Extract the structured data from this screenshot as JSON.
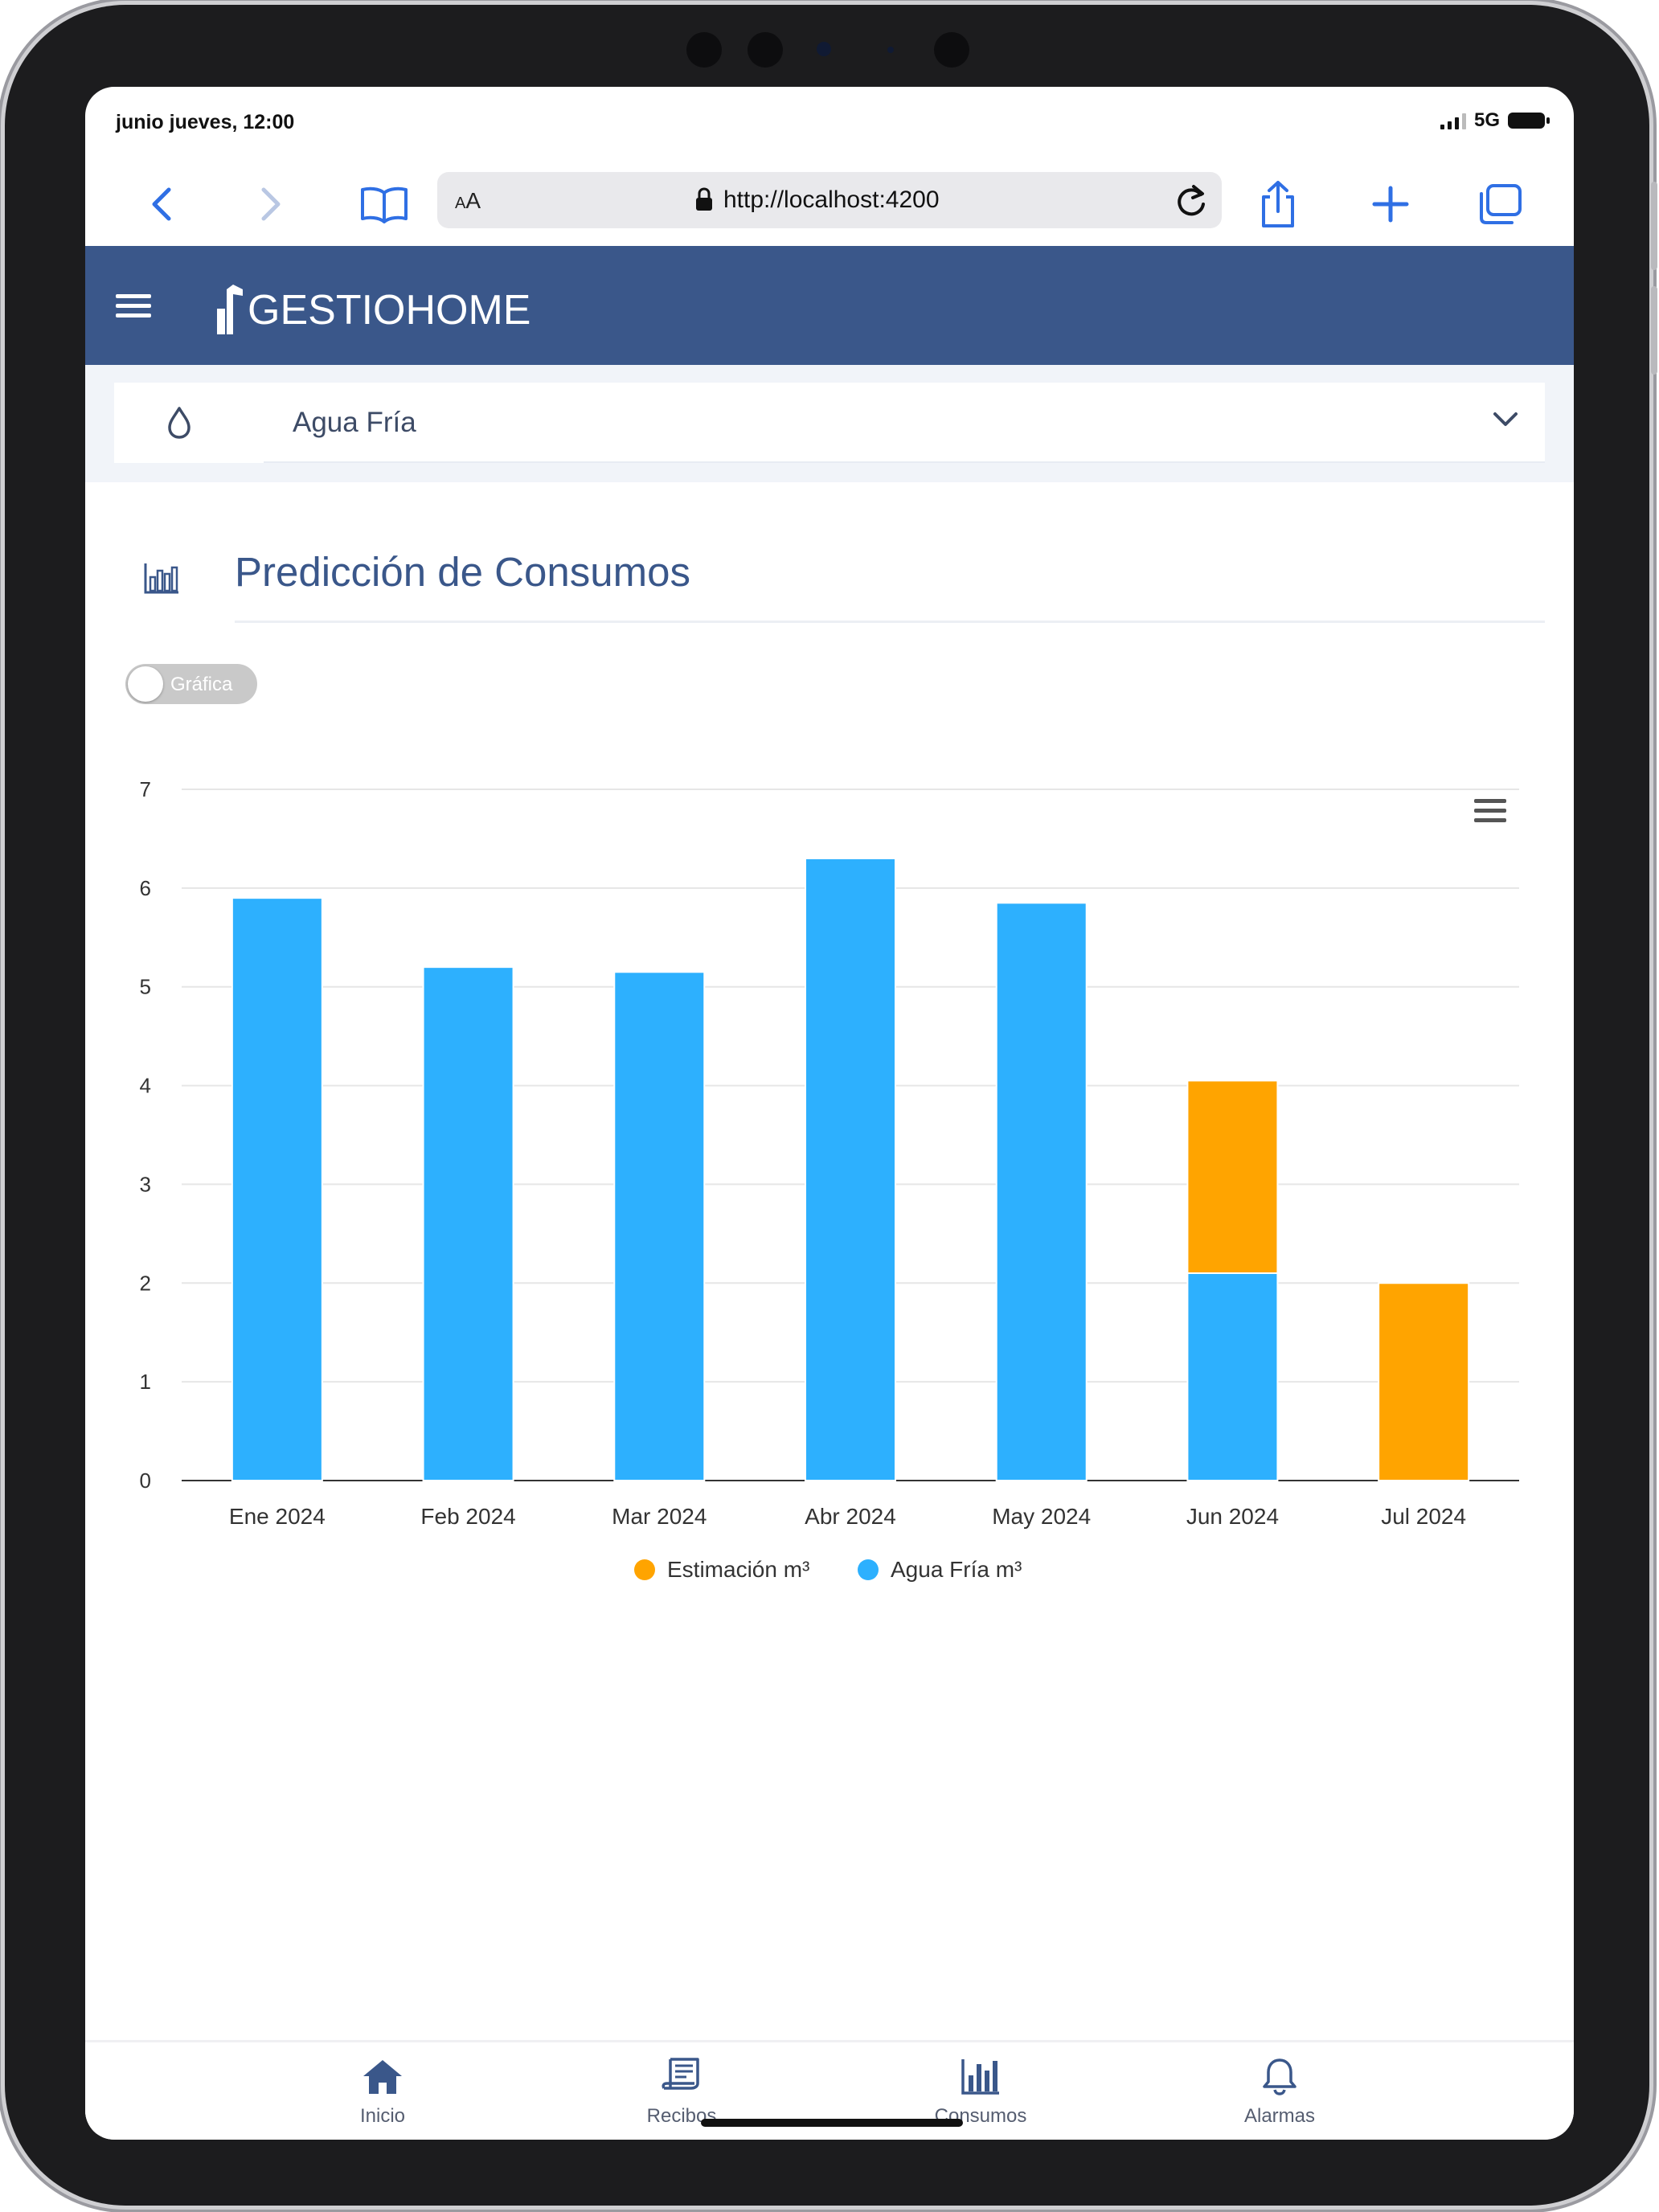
{
  "status_bar": {
    "time": "junio jueves, 12:00",
    "network": "5G"
  },
  "browser": {
    "text_size_label_small": "A",
    "text_size_label": "A",
    "url": "http://localhost:4200"
  },
  "app": {
    "brand": "GESTIOHOME"
  },
  "selector": {
    "value": "Agua Fría"
  },
  "section": {
    "title": "Predicción de Consumos"
  },
  "toggle": {
    "label": "Gráfica",
    "checked": false
  },
  "chart_data": {
    "type": "bar",
    "stacked": true,
    "categories": [
      "Ene 2024",
      "Feb 2024",
      "Mar 2024",
      "Abr 2024",
      "May 2024",
      "Jun 2024",
      "Jul 2024"
    ],
    "series": [
      {
        "name": "Agua Fría m³",
        "color": "#2db0fe",
        "values": [
          5.9,
          5.2,
          5.15,
          6.3,
          5.85,
          2.1,
          0
        ]
      },
      {
        "name": "Estimación m³",
        "color": "#ffa400",
        "values": [
          0,
          0,
          0,
          0,
          0,
          1.95,
          2.0
        ]
      }
    ],
    "legend": [
      "Estimación m³",
      "Agua Fría m³"
    ],
    "legend_position": "bottom-center",
    "y_ticks": [
      0,
      1,
      2,
      3,
      4,
      5,
      6,
      7
    ],
    "ylim": [
      0,
      7
    ],
    "grid": true
  },
  "bottom_nav": {
    "items": [
      {
        "label": "Inicio",
        "icon": "home-icon"
      },
      {
        "label": "Recibos",
        "icon": "receipt-icon"
      },
      {
        "label": "Consumos",
        "icon": "bar-chart-icon"
      },
      {
        "label": "Alarmas",
        "icon": "bell-icon"
      }
    ]
  }
}
